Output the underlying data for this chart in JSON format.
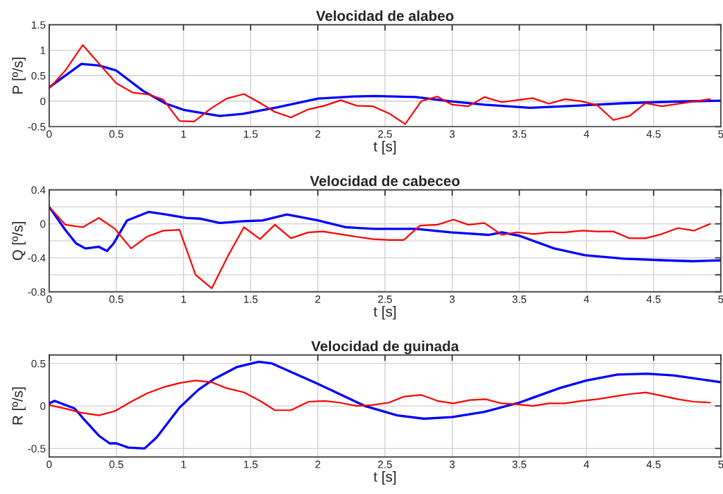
{
  "chart_data": [
    {
      "type": "line",
      "title": "Velocidad de alabeo",
      "xlabel": "t [s]",
      "ylabel": "P [º/s]",
      "xlim": [
        0,
        5
      ],
      "ylim": [
        -0.5,
        1.5
      ],
      "xticks": [
        0,
        0.5,
        1,
        1.5,
        2,
        2.5,
        3,
        3.5,
        4,
        4.5,
        5
      ],
      "yticks": [
        -0.5,
        0,
        0.5,
        1,
        1.5
      ],
      "grid": true,
      "series": [
        {
          "color": "#0000ff",
          "x": [
            0,
            0.24,
            0.37,
            0.5,
            0.7,
            0.87,
            1.0,
            1.13,
            1.27,
            1.44,
            1.7,
            2.0,
            2.26,
            2.42,
            2.73,
            2.98,
            3.24,
            3.58,
            3.92,
            4.28,
            4.64,
            5
          ],
          "values": [
            0.27,
            0.73,
            0.7,
            0.6,
            0.2,
            -0.05,
            -0.17,
            -0.23,
            -0.29,
            -0.25,
            -0.12,
            0.05,
            0.09,
            0.1,
            0.08,
            0,
            -0.07,
            -0.13,
            -0.09,
            -0.04,
            -0.01,
            0.01
          ]
        },
        {
          "color": "#ff0000",
          "x": [
            0,
            0.12,
            0.25,
            0.5,
            0.62,
            0.74,
            0.85,
            0.97,
            1.08,
            1.2,
            1.32,
            1.45,
            1.56,
            1.68,
            1.8,
            1.93,
            2.05,
            2.17,
            2.29,
            2.41,
            2.53,
            2.65,
            2.77,
            2.89,
            3.0,
            3.12,
            3.24,
            3.37,
            3.48,
            3.6,
            3.72,
            3.84,
            3.96,
            4.08,
            4.2,
            4.32,
            4.44,
            4.56,
            4.92
          ],
          "values": [
            0.25,
            0.6,
            1.1,
            0.35,
            0.17,
            0.13,
            0.03,
            -0.39,
            -0.4,
            -0.15,
            0.05,
            0.14,
            -0.02,
            -0.21,
            -0.32,
            -0.16,
            -0.09,
            0.02,
            -0.09,
            -0.1,
            -0.24,
            -0.45,
            0,
            0.09,
            -0.07,
            -0.1,
            0.08,
            -0.02,
            0.02,
            0.06,
            -0.05,
            0.04,
            0,
            -0.08,
            -0.37,
            -0.29,
            -0.04,
            -0.1,
            0.04
          ]
        }
      ]
    },
    {
      "type": "line",
      "title": "Velocidad de cabeceo",
      "xlabel": "t [s]",
      "ylabel": "Q [º/s]",
      "xlim": [
        0,
        5
      ],
      "ylim": [
        -0.8,
        0.4
      ],
      "xticks": [
        0,
        0.5,
        1,
        1.5,
        2,
        2.5,
        3,
        3.5,
        4,
        4.5,
        5
      ],
      "yticks": [
        -0.8,
        {
          "value": -0.6,
          "label": null
        },
        -0.4,
        {
          "value": -0.2,
          "label": null
        },
        0,
        {
          "value": 0.2,
          "label": null
        },
        0.4
      ],
      "grid": true,
      "series": [
        {
          "color": "#0000ff",
          "x": [
            0,
            0.12,
            0.2,
            0.27,
            0.37,
            0.43,
            0.48,
            0.58,
            0.74,
            0.87,
            1.02,
            1.13,
            1.27,
            1.44,
            1.59,
            1.77,
            2.0,
            2.21,
            2.42,
            2.73,
            2.99,
            3.27,
            3.37,
            3.5,
            3.76,
            3.99,
            4.28,
            4.59,
            4.79,
            5
          ],
          "values": [
            0.2,
            -0.07,
            -0.23,
            -0.29,
            -0.27,
            -0.32,
            -0.23,
            0.04,
            0.14,
            0.11,
            0.07,
            0.06,
            0.01,
            0.03,
            0.04,
            0.11,
            0.04,
            -0.04,
            -0.06,
            -0.06,
            -0.1,
            -0.13,
            -0.1,
            -0.14,
            -0.29,
            -0.37,
            -0.41,
            -0.43,
            -0.44,
            -0.43
          ]
        },
        {
          "color": "#ff0000",
          "x": [
            0,
            0.12,
            0.25,
            0.37,
            0.49,
            0.61,
            0.73,
            0.85,
            0.97,
            1.09,
            1.21,
            1.33,
            1.45,
            1.57,
            1.68,
            1.8,
            1.93,
            2.04,
            2.16,
            2.28,
            2.41,
            2.53,
            2.64,
            2.76,
            2.89,
            3.01,
            3.12,
            3.24,
            3.37,
            3.48,
            3.61,
            3.72,
            3.84,
            3.97,
            4.08,
            4.2,
            4.32,
            4.44,
            4.56,
            4.68,
            4.8,
            4.92
          ],
          "values": [
            0.2,
            -0.01,
            -0.04,
            0.07,
            -0.06,
            -0.29,
            -0.15,
            -0.08,
            -0.07,
            -0.6,
            -0.76,
            -0.38,
            -0.04,
            -0.18,
            -0.01,
            -0.17,
            -0.1,
            -0.09,
            -0.12,
            -0.15,
            -0.18,
            -0.19,
            -0.19,
            -0.02,
            -0.01,
            0.05,
            -0.01,
            0.01,
            -0.13,
            -0.1,
            -0.12,
            -0.1,
            -0.1,
            -0.08,
            -0.09,
            -0.09,
            -0.17,
            -0.17,
            -0.12,
            -0.05,
            -0.08,
            0
          ]
        }
      ]
    },
    {
      "type": "line",
      "title": "Velocidad de guinada",
      "xlabel": "t [s]",
      "ylabel": "R [º/s]",
      "xlim": [
        0,
        5
      ],
      "ylim": [
        -0.6,
        0.6
      ],
      "xticks": [
        0,
        0.5,
        1,
        1.5,
        2,
        2.5,
        3,
        3.5,
        4,
        4.5,
        5
      ],
      "yticks": [
        -0.5,
        0,
        0.5
      ],
      "grid": true,
      "series": [
        {
          "color": "#0000ff",
          "x": [
            0,
            0.04,
            0.19,
            0.25,
            0.37,
            0.45,
            0.5,
            0.59,
            0.71,
            0.8,
            0.97,
            1.11,
            1.23,
            1.4,
            1.56,
            1.66,
            2.0,
            2.35,
            2.59,
            2.79,
            3.0,
            3.24,
            3.5,
            3.8,
            4.0,
            4.23,
            4.45,
            4.65,
            5
          ],
          "values": [
            0.03,
            0.06,
            -0.03,
            -0.14,
            -0.35,
            -0.44,
            -0.44,
            -0.49,
            -0.5,
            -0.37,
            -0.02,
            0.19,
            0.32,
            0.46,
            0.52,
            0.5,
            0.26,
            0,
            -0.11,
            -0.15,
            -0.13,
            -0.07,
            0.04,
            0.21,
            0.3,
            0.37,
            0.38,
            0.36,
            0.28
          ]
        },
        {
          "color": "#ff0000",
          "x": [
            0,
            0.12,
            0.24,
            0.37,
            0.49,
            0.61,
            0.73,
            0.85,
            0.97,
            1.09,
            1.21,
            1.32,
            1.45,
            1.57,
            1.68,
            1.8,
            1.93,
            2.05,
            2.16,
            2.29,
            2.4,
            2.53,
            2.64,
            2.77,
            2.89,
            3.01,
            3.13,
            3.25,
            3.37,
            3.48,
            3.6,
            3.72,
            3.84,
            3.96,
            4.08,
            4.2,
            4.32,
            4.44,
            4.56,
            4.68,
            4.8,
            4.92
          ],
          "values": [
            0.01,
            -0.03,
            -0.08,
            -0.11,
            -0.06,
            0.05,
            0.15,
            0.22,
            0.27,
            0.3,
            0.28,
            0.21,
            0.16,
            0.06,
            -0.05,
            -0.05,
            0.05,
            0.06,
            0.04,
            0,
            0.01,
            0.04,
            0.11,
            0.13,
            0.06,
            0.03,
            0.07,
            0.08,
            0.03,
            0.02,
            0,
            0.03,
            0.03,
            0.06,
            0.08,
            0.11,
            0.14,
            0.16,
            0.12,
            0.08,
            0.05,
            0.04
          ]
        }
      ]
    }
  ]
}
